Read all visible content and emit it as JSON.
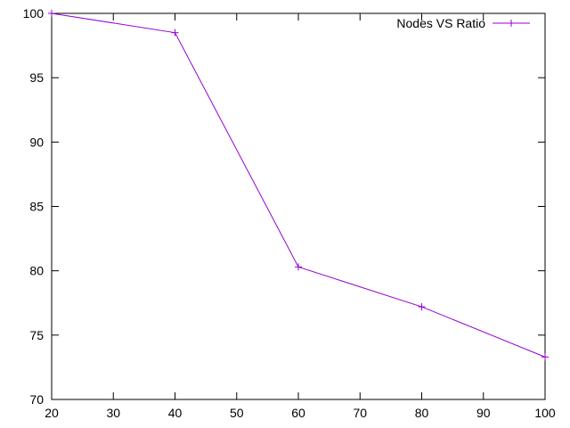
{
  "chart_data": {
    "type": "line",
    "title": "",
    "xlabel": "",
    "ylabel": "",
    "xlim": [
      20,
      100
    ],
    "ylim": [
      70,
      100
    ],
    "xticks": [
      20,
      30,
      40,
      50,
      60,
      70,
      80,
      90,
      100
    ],
    "yticks": [
      70,
      75,
      80,
      85,
      90,
      95,
      100
    ],
    "grid": false,
    "legend_position": "top-right",
    "series": [
      {
        "name": "Nodes VS Ratio",
        "color": "#9400d3",
        "marker": "plus",
        "x": [
          20,
          40,
          60,
          80,
          100
        ],
        "y": [
          100,
          98.5,
          80.3,
          77.2,
          73.3
        ]
      }
    ]
  }
}
